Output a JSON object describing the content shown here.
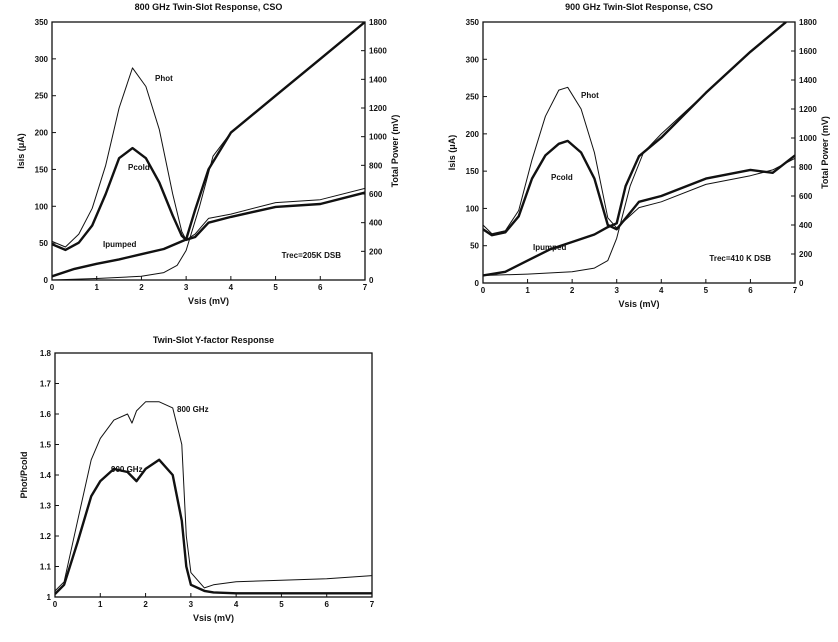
{
  "chart_data": [
    {
      "type": "line",
      "title": "800 GHz Twin-Slot Response, CSO",
      "xlabel": "Vsis (mV)",
      "ylabel": "Isis (μA)",
      "y2label": "Total Power (mV)",
      "xlim": [
        0,
        7
      ],
      "ylim": [
        0,
        350
      ],
      "y2lim": [
        0,
        1800
      ],
      "xticks": [
        0,
        1,
        2,
        3,
        4,
        5,
        6,
        7
      ],
      "yticks": [
        0,
        50,
        100,
        150,
        200,
        250,
        300,
        350
      ],
      "y2ticks": [
        0,
        200,
        400,
        600,
        800,
        1000,
        1200,
        1400,
        1600,
        1800
      ],
      "annotation": "Trec=205K DSB",
      "series": [
        {
          "name": "Phot",
          "axis": "right",
          "style": "thin",
          "x": [
            0,
            0.3,
            0.6,
            0.9,
            1.2,
            1.5,
            1.8,
            2.1,
            2.4,
            2.7,
            2.9,
            3.0,
            3.2,
            3.5,
            4.0,
            5.0,
            6.0,
            7.0
          ],
          "y": [
            270,
            230,
            320,
            500,
            800,
            1200,
            1480,
            1350,
            1050,
            600,
            340,
            280,
            320,
            430,
            460,
            540,
            560,
            640
          ]
        },
        {
          "name": "Pcold",
          "axis": "right",
          "style": "thick",
          "x": [
            0,
            0.3,
            0.6,
            0.9,
            1.2,
            1.5,
            1.8,
            2.1,
            2.4,
            2.7,
            2.9,
            3.0,
            3.2,
            3.5,
            4.0,
            5.0,
            6.0,
            7.0
          ],
          "y": [
            250,
            210,
            260,
            380,
            600,
            850,
            920,
            850,
            680,
            450,
            310,
            280,
            300,
            400,
            440,
            510,
            530,
            610
          ]
        },
        {
          "name": "Ipumped",
          "axis": "left",
          "style": "thick",
          "x": [
            0,
            0.5,
            1.0,
            1.5,
            2.0,
            2.5,
            3.0,
            3.2,
            3.5,
            3.7,
            4.0,
            5.0,
            6.0,
            7.0
          ],
          "y": [
            5,
            15,
            22,
            28,
            35,
            42,
            55,
            95,
            150,
            170,
            200,
            250,
            300,
            350
          ]
        },
        {
          "name": "",
          "axis": "left",
          "style": "thin",
          "x": [
            0,
            1,
            2,
            2.5,
            2.8,
            3.0,
            3.3,
            3.6,
            4.0,
            5.0,
            6.0,
            7.0
          ],
          "y": [
            0,
            2,
            5,
            10,
            20,
            40,
            100,
            168,
            200,
            250,
            300,
            350
          ]
        }
      ]
    },
    {
      "type": "line",
      "title": "900 GHz Twin-Slot Response, CSO",
      "xlabel": "Vsis (mV)",
      "ylabel": "Isis (μA)",
      "y2label": "Total Power (mV)",
      "xlim": [
        0,
        7
      ],
      "ylim": [
        0,
        350
      ],
      "y2lim": [
        0,
        1800
      ],
      "xticks": [
        0,
        1,
        2,
        3,
        4,
        5,
        6,
        7
      ],
      "yticks": [
        0,
        50,
        100,
        150,
        200,
        250,
        300,
        350
      ],
      "y2ticks": [
        0,
        200,
        400,
        600,
        800,
        1000,
        1200,
        1400,
        1600,
        1800
      ],
      "annotation": "Trec=410 K DSB",
      "series": [
        {
          "name": "Phot",
          "axis": "right",
          "style": "thin",
          "x": [
            0,
            0.2,
            0.5,
            0.8,
            1.1,
            1.4,
            1.7,
            1.9,
            2.2,
            2.5,
            2.8,
            3.0,
            3.5,
            4.0,
            5.0,
            6.0,
            6.5,
            7.0
          ],
          "y": [
            400,
            340,
            360,
            500,
            850,
            1150,
            1330,
            1350,
            1200,
            900,
            450,
            380,
            520,
            560,
            680,
            740,
            780,
            860
          ]
        },
        {
          "name": "Pcold",
          "axis": "right",
          "style": "thick",
          "x": [
            0,
            0.2,
            0.5,
            0.8,
            1.1,
            1.4,
            1.7,
            1.9,
            2.2,
            2.5,
            2.8,
            3.0,
            3.5,
            4.0,
            5.0,
            6.0,
            6.5,
            7.0
          ],
          "y": [
            370,
            330,
            350,
            460,
            720,
            880,
            960,
            980,
            900,
            720,
            400,
            370,
            560,
            600,
            720,
            780,
            760,
            880
          ]
        },
        {
          "name": "Ipumped",
          "axis": "left",
          "style": "thick",
          "x": [
            0,
            0.5,
            1.0,
            1.5,
            2.0,
            2.5,
            2.8,
            3.0,
            3.2,
            3.5,
            4.0,
            5.0,
            6.0,
            6.8
          ],
          "y": [
            10,
            15,
            30,
            45,
            55,
            65,
            75,
            80,
            130,
            170,
            195,
            255,
            310,
            350
          ]
        },
        {
          "name": "",
          "axis": "left",
          "style": "thin",
          "x": [
            0,
            1,
            2,
            2.5,
            2.8,
            3.0,
            3.3,
            3.6,
            4.0,
            5.0,
            6.0,
            6.8
          ],
          "y": [
            10,
            12,
            15,
            20,
            30,
            60,
            130,
            175,
            200,
            255,
            310,
            350
          ]
        }
      ]
    },
    {
      "type": "line",
      "title": "Twin-Slot Y-factor Response",
      "xlabel": "Vsis (mV)",
      "ylabel": "Phot/Pcold",
      "xlim": [
        0,
        7
      ],
      "ylim": [
        1.0,
        1.8
      ],
      "xticks": [
        0,
        1,
        2,
        3,
        4,
        5,
        6,
        7
      ],
      "yticks": [
        1.0,
        1.1,
        1.2,
        1.3,
        1.4,
        1.5,
        1.6,
        1.7,
        1.8
      ],
      "series": [
        {
          "name": "800 GHz",
          "style": "thin",
          "x": [
            0,
            0.2,
            0.5,
            0.8,
            1.0,
            1.3,
            1.6,
            1.7,
            1.8,
            2.0,
            2.3,
            2.6,
            2.8,
            2.9,
            3.0,
            3.3,
            3.5,
            4.0,
            5.0,
            6.0,
            7.0
          ],
          "y": [
            1.02,
            1.05,
            1.25,
            1.45,
            1.52,
            1.58,
            1.6,
            1.57,
            1.61,
            1.64,
            1.64,
            1.62,
            1.5,
            1.2,
            1.08,
            1.03,
            1.04,
            1.05,
            1.055,
            1.06,
            1.07
          ]
        },
        {
          "name": "900 GHz",
          "style": "thick",
          "x": [
            0,
            0.2,
            0.5,
            0.8,
            1.0,
            1.3,
            1.6,
            1.8,
            2.0,
            2.3,
            2.6,
            2.8,
            2.9,
            3.0,
            3.3,
            3.5,
            4.0,
            5.0,
            6.0,
            7.0
          ],
          "y": [
            1.01,
            1.04,
            1.18,
            1.33,
            1.38,
            1.42,
            1.41,
            1.38,
            1.42,
            1.45,
            1.4,
            1.25,
            1.1,
            1.04,
            1.02,
            1.015,
            1.012,
            1.012,
            1.012,
            1.012
          ]
        }
      ]
    }
  ],
  "labels": {
    "phot_a": "Phot",
    "pcold_a": "Pcold",
    "ipumped_a": "Ipumped",
    "phot_b": "Phot",
    "pcold_b": "Pcold",
    "ipumped_b": "Ipumped",
    "ghz800": "800 GHz",
    "ghz900": "900 GHz"
  }
}
